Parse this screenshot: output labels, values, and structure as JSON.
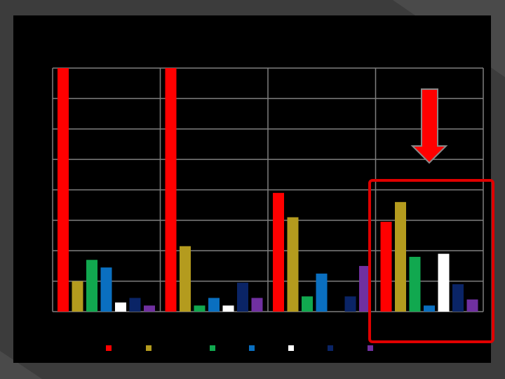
{
  "chart_data": {
    "type": "bar",
    "categories": [
      null,
      null,
      null,
      null
    ],
    "series": [
      {
        "color": "#ff0000",
        "values": [
          8,
          8,
          3.9,
          2.95
        ]
      },
      {
        "color": "#b49b1e",
        "values": [
          1.0,
          2.15,
          3.1,
          3.6
        ]
      },
      {
        "color": "#11a84f",
        "values": [
          1.7,
          0.2,
          0.5,
          1.8
        ]
      },
      {
        "color": "#0a6fc0",
        "values": [
          1.45,
          0.45,
          1.25,
          0.2
        ]
      },
      {
        "color": "#ffffff",
        "values": [
          0.3,
          0.2,
          0,
          1.9
        ]
      },
      {
        "color": "#0a2466",
        "values": [
          0.45,
          0.95,
          0.5,
          0.9
        ]
      },
      {
        "color": "#7030a0",
        "values": [
          0.2,
          0.45,
          1.5,
          0.4
        ]
      }
    ],
    "ylim": [
      0,
      8
    ],
    "yticks": [
      0,
      1,
      2,
      3,
      4,
      5,
      6,
      7,
      8
    ],
    "grid": true
  }
}
